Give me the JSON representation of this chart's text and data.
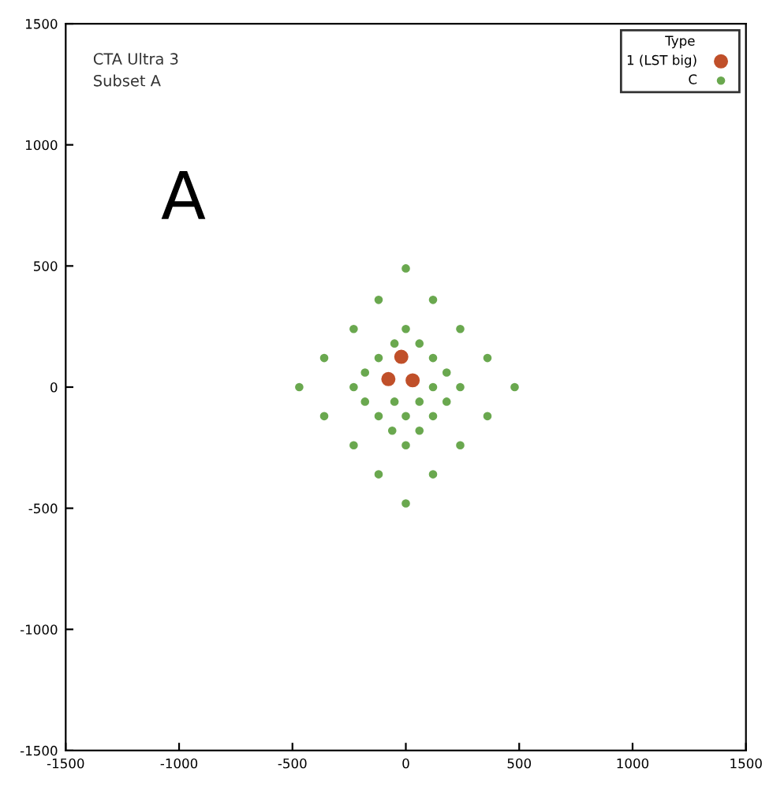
{
  "chart_data": {
    "type": "scatter",
    "annotations": [
      "CTA Ultra 3",
      "Subset A",
      "A"
    ],
    "legend_title": "Type",
    "legend": "top right",
    "marker": "circle",
    "grid": false,
    "xlim": [
      -1500,
      1500
    ],
    "xticks": [
      -1500,
      -1000,
      -500,
      0,
      500,
      1000,
      1500
    ],
    "ylim": [
      -1500,
      1500
    ],
    "yticks": [
      -1500,
      -1000,
      -500,
      0,
      500,
      1000,
      1500
    ],
    "series": [
      {
        "name": "1 (LST big)",
        "color": "#c0502a",
        "x": [
          -20,
          -77,
          30
        ],
        "values": [
          125,
          33,
          28
        ]
      },
      {
        "name": "C",
        "color": "#6aa84f",
        "x": [
          0,
          -120,
          120,
          -230,
          0,
          240,
          -50,
          60,
          -360,
          -120,
          120,
          360,
          -180,
          180,
          -470,
          -230,
          120,
          240,
          480,
          -180,
          -50,
          60,
          180,
          -360,
          -120,
          0,
          120,
          360,
          -60,
          60,
          -230,
          0,
          240,
          -120,
          120,
          0
        ],
        "values": [
          490,
          360,
          360,
          240,
          240,
          240,
          180,
          180,
          120,
          120,
          120,
          120,
          60,
          60,
          0,
          0,
          0,
          0,
          0,
          -60,
          -60,
          -60,
          -60,
          -120,
          -120,
          -120,
          -120,
          -120,
          -180,
          -180,
          -240,
          -240,
          -240,
          -360,
          -360,
          -480
        ]
      }
    ]
  }
}
